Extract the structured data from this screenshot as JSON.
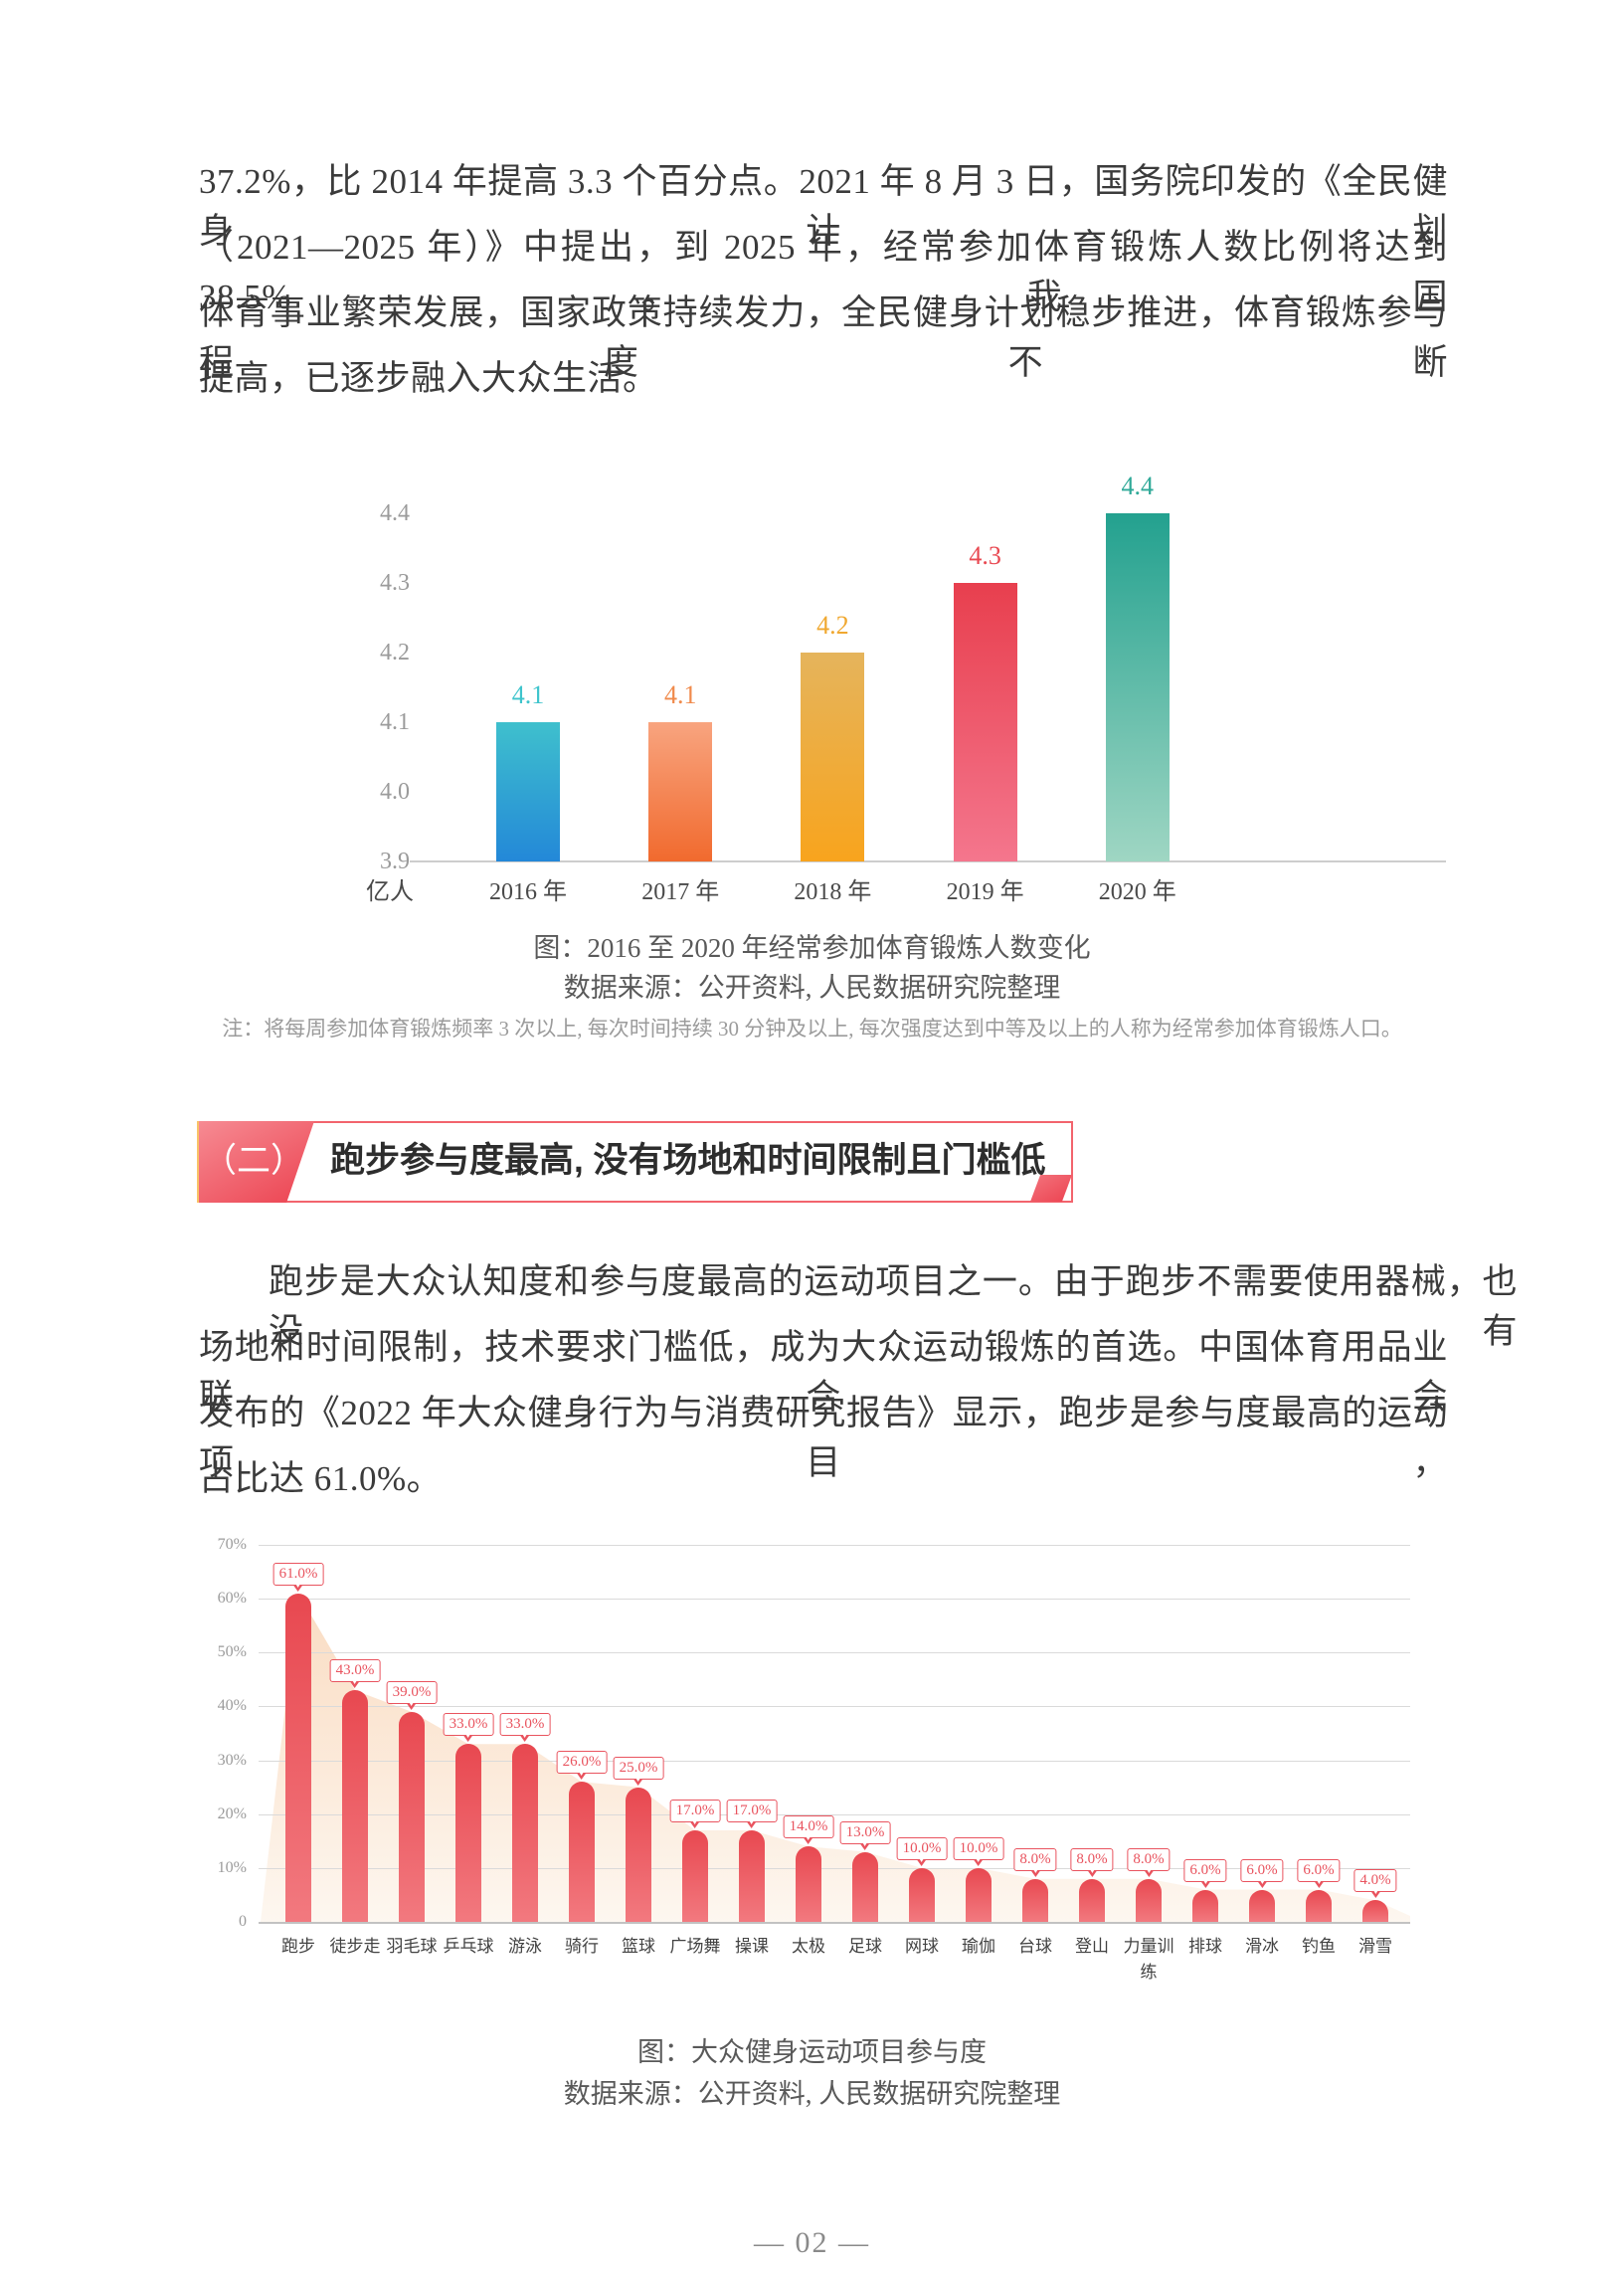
{
  "page": {
    "number_label": "— 02 —"
  },
  "paragraph1": {
    "lines": [
      "37.2%，比 2014 年提高 3.3 个百分点。2021 年 8 月 3 日，国务院印发的《全民健身计划",
      "（2021—2025 年）》中提出，到 2025 年，经常参加体育锻炼人数比例将达到 38.5%。我国",
      "体育事业繁荣发展，国家政策持续发力，全民健身计划稳步推进，体育锻炼参与程度不断",
      "提高，已逐步融入大众生活。"
    ]
  },
  "section_header": {
    "badge": "（二）",
    "title": "跑步参与度最高, 没有场地和时间限制且门槛低",
    "border_color": "#f2646d",
    "badge_color": "#ec4250",
    "stripe_color": "#f8c468"
  },
  "paragraph2": {
    "lines": [
      "跑步是大众认知度和参与度最高的运动项目之一。由于跑步不需要使用器械，也没有",
      "场地和时间限制，技术要求门槛低，成为大众运动锻炼的首选。中国体育用品业联合会",
      "发布的《2022 年大众健身行为与消费研究报告》显示，跑步是参与度最高的运动项目，",
      "占比达 61.0%。"
    ]
  },
  "chart_data": [
    {
      "type": "bar",
      "title": "",
      "caption": "图：2016 至 2020 年经常参加体育锻炼人数变化",
      "source": "数据来源：公开资料, 人民数据研究院整理",
      "note": "注：将每周参加体育锻炼频率 3 次以上, 每次时间持续 30 分钟及以上, 每次强度达到中等及以上的人称为经常参加体育锻炼人口。",
      "unit_label": "亿人",
      "categories": [
        "2016 年",
        "2017 年",
        "2018 年",
        "2019 年",
        "2020 年"
      ],
      "values": [
        4.1,
        4.1,
        4.2,
        4.3,
        4.4
      ],
      "ylim": [
        3.9,
        4.4
      ],
      "y_ticks": [
        "4.4",
        "4.3",
        "4.2",
        "4.1",
        "4.0",
        "3.9"
      ],
      "grid": false,
      "bar_colors": [
        [
          "#3fc0cd",
          "#2388d8"
        ],
        [
          "#f8a47f",
          "#f16a2e"
        ],
        [
          "#e5b45c",
          "#f8a41d"
        ],
        [
          "#e83f4e",
          "#f4768d"
        ],
        [
          "#23a18f",
          "#9fd6c3"
        ]
      ],
      "label_colors": [
        "#3ec4cc",
        "#f08a4b",
        "#f0a830",
        "#e94952",
        "#2fa998"
      ]
    },
    {
      "type": "bar",
      "title": "",
      "caption": "图：大众健身运动项目参与度",
      "source": "数据来源：公开资料, 人民数据研究院整理",
      "categories": [
        "跑步",
        "徒步走",
        "羽毛球",
        "乒乓球",
        "游泳",
        "骑行",
        "篮球",
        "广场舞",
        "操课",
        "太极",
        "足球",
        "网球",
        "瑜伽",
        "台球",
        "登山",
        "力量训练",
        "排球",
        "滑冰",
        "钓鱼",
        "滑雪"
      ],
      "values": [
        61,
        43,
        39,
        33,
        33,
        26,
        25,
        17,
        17,
        14,
        13,
        10,
        10,
        8,
        8,
        8,
        6,
        6,
        6,
        4
      ],
      "value_label_suffix": "%",
      "ylim": [
        0,
        70
      ],
      "y_ticks": [
        "70%",
        "60%",
        "50%",
        "40%",
        "30%",
        "20%",
        "10%",
        "0"
      ],
      "grid": true,
      "bar_gradient": [
        "#e84850",
        "#f2797f"
      ],
      "area_gradient": [
        "#f9d6b8",
        "#fdf6ee"
      ],
      "badge_color": "#e9545f"
    }
  ]
}
